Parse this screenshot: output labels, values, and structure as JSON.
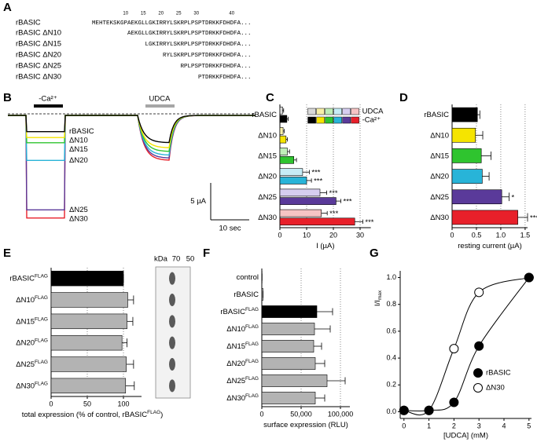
{
  "panel_labels": [
    "A",
    "B",
    "C",
    "D",
    "E",
    "F",
    "G"
  ],
  "alignment": {
    "ruler": [
      10,
      15,
      20,
      25,
      30,
      40
    ],
    "rows": [
      {
        "name": "rBASIC",
        "sequence": "MEHTEKSKGPAEKGLLGKIRRYLSKRPLPSPTDRKKFDHDFA..."
      },
      {
        "name": "rBASIC ΔN10",
        "sequence": "AEKGLLGKIRRYLSKRPLPSPTDRKKFDHDFA..."
      },
      {
        "name": "rBASIC ΔN15",
        "sequence": "LGKIRRYLSKRPLPSPTDRKKFDHDFA..."
      },
      {
        "name": "rBASIC ΔN20",
        "sequence": "RYLSKRPLPSPTDRKKFDHDFA..."
      },
      {
        "name": "rBASIC ΔN25",
        "sequence": "RPLPSPTDRKKFDHDFA..."
      },
      {
        "name": "rBASIC ΔN30",
        "sequence": "PTDRKKFDHDFA..."
      }
    ]
  },
  "chart_data": [
    {
      "type": "trace",
      "conditions": [
        {
          "name": "-Ca²⁺",
          "color": "#000000"
        },
        {
          "name": "UDCA",
          "color": "#a6a6a6"
        }
      ],
      "series": [
        {
          "name": "rBASIC",
          "color": "#000000",
          "values": [
            -2.2,
            -3.7
          ]
        },
        {
          "name": "ΔN10",
          "color": "#f5e400",
          "values": [
            -3,
            -4.4
          ]
        },
        {
          "name": "ΔN15",
          "color": "#2fc42f",
          "values": [
            -3.7,
            -4.9
          ]
        },
        {
          "name": "ΔN20",
          "color": "#28b4d8",
          "values": [
            -6.1,
            -5.4
          ]
        },
        {
          "name": "ΔN25",
          "color": "#5a3a9a",
          "values": [
            -12.8,
            -5.8
          ]
        },
        {
          "name": "ΔN30",
          "color": "#e8202a",
          "values": [
            -13.9,
            -6.1
          ]
        }
      ],
      "scale_bar": {
        "current": 5,
        "current_label": "5 µA",
        "time": 10,
        "time_label": "10 sec"
      }
    },
    {
      "type": "hbar",
      "categories": [
        "rBASIC",
        "ΔN10",
        "ΔN15",
        "ΔN20",
        "ΔN25",
        "ΔN30"
      ],
      "series": [
        {
          "name": "UDCA",
          "colors": [
            "#d9d9d9",
            "#f8f0a8",
            "#bfeeb8",
            "#c6ecf6",
            "#d6cdf0",
            "#f6c4c4"
          ],
          "values": [
            1,
            1.2,
            2.8,
            8.5,
            15,
            15.5
          ],
          "errors": [
            0.4,
            0.4,
            0.8,
            2.5,
            2.5,
            2.2
          ],
          "significance": [
            null,
            null,
            null,
            "***",
            "***",
            "***"
          ]
        },
        {
          "name": "-Ca²⁺",
          "colors": [
            "#000000",
            "#f5e400",
            "#2fc42f",
            "#28b4d8",
            "#5a3a9a",
            "#e8202a"
          ],
          "values": [
            2.6,
            2.3,
            5.2,
            10,
            21,
            28
          ],
          "errors": [
            0.5,
            0.5,
            1,
            1.8,
            1.8,
            3
          ],
          "significance": [
            null,
            null,
            null,
            "***",
            "***",
            "***"
          ]
        }
      ],
      "xlabel": "I (µA)",
      "xlim": [
        0,
        34
      ],
      "xticks": [
        0,
        10,
        20,
        30
      ],
      "grid": true,
      "legend": "top-right"
    },
    {
      "type": "hbar",
      "categories": [
        "rBASIC",
        "ΔN10",
        "ΔN15",
        "ΔN20",
        "ΔN25",
        "ΔN30"
      ],
      "colors": [
        "#000000",
        "#f5e400",
        "#2fc42f",
        "#28b4d8",
        "#5a3a9a",
        "#e8202a"
      ],
      "values": [
        0.52,
        0.48,
        0.6,
        0.62,
        1.02,
        1.35
      ],
      "errors": [
        0.05,
        0.15,
        0.2,
        0.14,
        0.15,
        0.2
      ],
      "significance": [
        null,
        null,
        null,
        null,
        "*",
        "***"
      ],
      "xlabel": "resting current (µA)",
      "xlim": [
        0,
        1.55
      ],
      "xticks": [
        0,
        0.5,
        {
          "value": 1,
          "label": "1.0"
        },
        1.5
      ],
      "grid": true
    },
    {
      "type": "hbar",
      "categories": [
        "rBASIC",
        "ΔN10",
        "ΔN15",
        "ΔN20",
        "ΔN25",
        "ΔN30"
      ],
      "superscripts": [
        "FLAG",
        "FLAG",
        "FLAG",
        "FLAG",
        "FLAG",
        "FLAG"
      ],
      "colors": [
        "#000000",
        "#b3b3b3",
        "#b3b3b3",
        "#b3b3b3",
        "#b3b3b3",
        "#b3b3b3"
      ],
      "values": [
        100,
        106,
        105,
        98,
        104,
        103
      ],
      "errors": [
        0,
        8,
        8,
        7,
        10,
        12
      ],
      "xlabel": "total expression (% of control, rBASIC",
      "xlabel_superscript": "FLAG",
      "xlabel_end": ")",
      "xlim": [
        0,
        125
      ],
      "xticks": [
        0,
        50,
        100
      ],
      "grid": true,
      "blot": {
        "unit": "kDa",
        "markers": [
          70,
          50
        ]
      }
    },
    {
      "type": "hbar",
      "categories": [
        "control",
        "rBASIC",
        "rBASIC",
        "ΔN10",
        "ΔN15",
        "ΔN20",
        "ΔN25",
        "ΔN30"
      ],
      "superscripts": [
        null,
        null,
        "FLAG",
        "FLAG",
        "FLAG",
        "FLAG",
        "FLAG",
        "FLAG"
      ],
      "colors": [
        "#b3b3b3",
        "#b3b3b3",
        "#000000",
        "#b3b3b3",
        "#b3b3b3",
        "#b3b3b3",
        "#b3b3b3",
        "#b3b3b3"
      ],
      "values": [
        300,
        1500,
        70000,
        67000,
        66000,
        68000,
        83000,
        68000
      ],
      "errors": [
        0,
        0,
        20000,
        20000,
        10000,
        12000,
        23000,
        12000
      ],
      "xlabel": "surface expression (RLU)",
      "xlim": [
        0,
        112000
      ],
      "xticks": [
        0,
        {
          "value": 50000,
          "label": "50,000"
        },
        {
          "value": 100000,
          "label": "100,000"
        }
      ],
      "grid": true
    },
    {
      "type": "scatter",
      "series": [
        {
          "name": "rBASIC",
          "color": "#000000",
          "marker": "filled",
          "x": [
            0,
            1,
            2,
            3,
            5
          ],
          "values": [
            0.01,
            0.01,
            0.07,
            0.49,
            1
          ]
        },
        {
          "name": "ΔN30",
          "color": "#000000",
          "marker": "open",
          "x": [
            0,
            1,
            2,
            3,
            5
          ],
          "values": [
            0.01,
            0.01,
            0.47,
            0.89,
            1
          ]
        }
      ],
      "xlabel": "[UDCA] (mM)",
      "ylabel": "I/I",
      "ylabel_subscript": "max",
      "xlim": [
        -0.15,
        5.1
      ],
      "ylim": [
        -0.05,
        1.05
      ],
      "xticks": [
        0,
        1,
        2,
        3,
        4,
        5
      ],
      "yticks": [
        {
          "value": 0,
          "label": "0.0"
        },
        0.2,
        0.4,
        0.6,
        0.8,
        {
          "value": 1,
          "label": "1.0"
        }
      ],
      "legend": "bottom-right"
    }
  ]
}
